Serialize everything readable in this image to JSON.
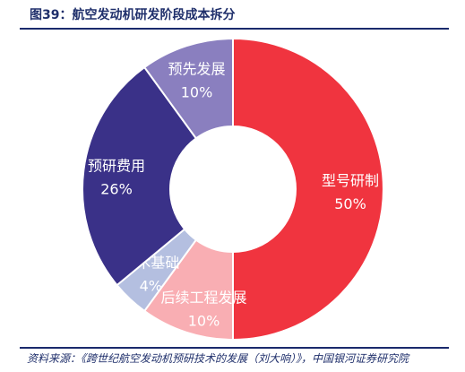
{
  "figure": {
    "title": "图39：航空发动机研发阶段成本拆分",
    "source": "资料来源：《跨世纪航空发动机预研技术的发展（刘大响）》，中国银河证券研究院"
  },
  "chart_data": {
    "type": "pie",
    "donut": true,
    "title": "",
    "categories": [
      "型号研制",
      "后续工程发展",
      "技术基础",
      "预研费用",
      "预先发展"
    ],
    "values": [
      50,
      10,
      4,
      26,
      10
    ],
    "labels": [
      "50%",
      "10%",
      "4%",
      "26%",
      "10%"
    ],
    "colors": [
      "#f0343f",
      "#f9aeb3",
      "#b4bfe0",
      "#3a3188",
      "#8a7fbf"
    ],
    "legend": "none"
  }
}
